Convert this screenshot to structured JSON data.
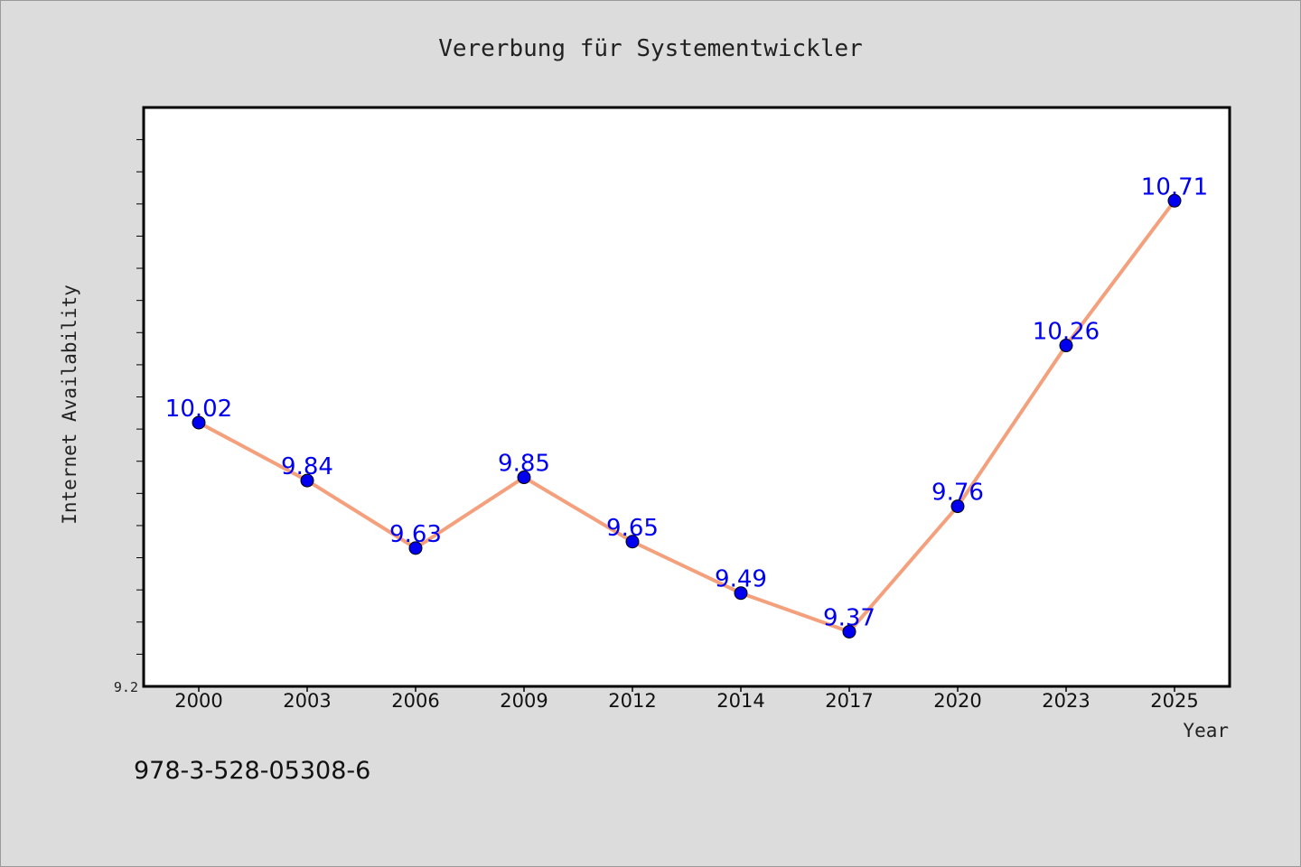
{
  "chart_data": {
    "type": "line",
    "title": "Vererbung für Systementwickler",
    "xlabel": "Year",
    "ylabel": "Internet Availability",
    "categories": [
      "2000",
      "2003",
      "2006",
      "2009",
      "2012",
      "2014",
      "2017",
      "2020",
      "2023",
      "2025"
    ],
    "series": [
      {
        "values": [
          10.02,
          9.84,
          9.63,
          9.85,
          9.65,
          9.49,
          9.37,
          9.76,
          10.26,
          10.71
        ],
        "data_labels": [
          "10.02",
          "9.84",
          "9.63",
          "9.85",
          "9.65",
          "9.49",
          "9.37",
          "9.76",
          "10.26",
          "10.71"
        ]
      }
    ],
    "ylim": [
      9.2,
      11.0
    ],
    "ytick_labels": [
      "9.2"
    ],
    "grid": false,
    "colors": {
      "line": "#f4a07c",
      "marker": "#0000ee",
      "data_label": "#0000ee",
      "background": "#dcdcdc",
      "plot_bg": "#ffffff"
    }
  },
  "footer": {
    "isbn": "978-3-528-05308-6"
  }
}
